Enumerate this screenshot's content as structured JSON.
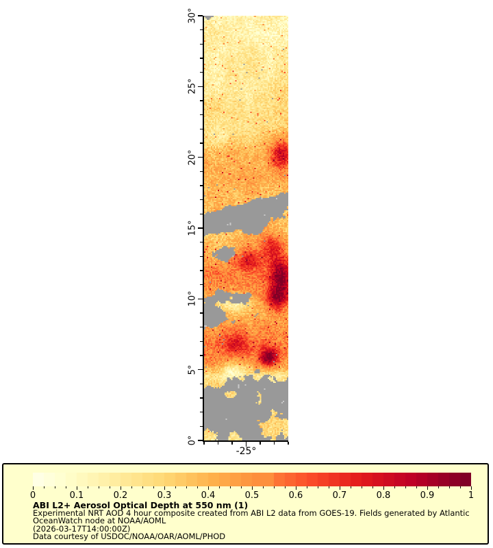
{
  "figure": {
    "y_axis": {
      "tick_values": [
        0,
        5,
        10,
        15,
        20,
        25,
        30
      ],
      "tick_labels": [
        "0°",
        "5°",
        "10°",
        "15°",
        "20°",
        "25°",
        "30°"
      ],
      "minor_step_deg": 1
    },
    "x_axis": {
      "tick_values": [
        -25
      ],
      "tick_labels": [
        "-25°"
      ],
      "minor_step_deg": 1
    },
    "colors": {
      "page_bg": "#ffffff",
      "panel_bg": "#ffffcc",
      "axis": "#000000",
      "nodata_gray": "#999999",
      "nodata_light_gray": "#c9c9c9"
    }
  },
  "legend_panel": {
    "colorbar_tick_labels": [
      "0",
      "0.1",
      "0.2",
      "0.3",
      "0.4",
      "0.5",
      "0.6",
      "0.7",
      "0.8",
      "0.9",
      "1"
    ],
    "caption_title": "ABI L2+ Aerosol Optical Depth at 550 nm (1)",
    "caption_lines": [
      "Experimental NRT AOD 4 hour composite created from ABI L2 data from GOES-19. Fields generated by Atlantic",
      "OceanWatch node at NOAA/AOML",
      "(2026-03-17T14:00:00Z)",
      "Data courtesy of USDOC/NOAA/OAR/AOML/PHOD"
    ]
  },
  "chart_data": {
    "type": "heatmap",
    "title": "ABI L2+ Aerosol Optical Depth at 550 nm (1)",
    "variable": "Aerosol Optical Depth at 550 nm",
    "x_range_lon_deg": [
      -28,
      -22
    ],
    "y_range_lat_deg": [
      0,
      30
    ],
    "value_range": [
      0,
      1
    ],
    "colorbar_tick_step": 0.1,
    "colorbar_minor_step": 0.025,
    "level_step": 0.025,
    "colormap_positions": [
      0,
      0.09,
      0.2,
      0.31,
      0.42,
      0.53,
      0.64,
      0.76,
      0.88,
      1
    ],
    "colormap_stops": [
      "#ffffee",
      "#ffffcc",
      "#ffeda0",
      "#fed976",
      "#feb24c",
      "#fd8d3c",
      "#fc4e2a",
      "#e31a1c",
      "#bd0026",
      "#800026"
    ],
    "nodata_color": "#999999",
    "aod_profile_by_lat_band": [
      0.3,
      0.35,
      0.3,
      0.3,
      0.25,
      0.5,
      0.55,
      0.5,
      0.45,
      0.35,
      0.5,
      0.55,
      0.5,
      0.45,
      0.4,
      0.38,
      0.38,
      0.4,
      0.45,
      0.45,
      0.4,
      0.33,
      0.3,
      0.28,
      0.26,
      0.24,
      0.22,
      0.2,
      0.19,
      0.19
    ],
    "cloud_profile_by_lat_band": [
      1.0,
      0.95,
      1.05,
      1.0,
      0.7,
      0.3,
      0.15,
      0.25,
      0.45,
      0.45,
      0.3,
      0.2,
      0.3,
      0.35,
      0.3,
      0.55,
      0.45,
      0.15,
      0.05,
      0.03,
      0.02,
      0.02,
      0.02,
      0.02,
      0.02,
      0.02,
      0.02,
      0.01,
      0.01,
      0.06
    ],
    "plumes": [
      {
        "lon": -22.5,
        "lat": 20.2,
        "rlon": 0.8,
        "rlat": 1.1,
        "amp": 0.4
      },
      {
        "lon": -22.6,
        "lat": 11.6,
        "rlon": 0.7,
        "rlat": 1.6,
        "amp": 0.45
      },
      {
        "lon": -22.9,
        "lat": 9.9,
        "rlon": 0.9,
        "rlat": 0.8,
        "amp": 0.4
      },
      {
        "lon": -23.4,
        "lat": 5.9,
        "rlon": 0.7,
        "rlat": 0.7,
        "amp": 0.5
      },
      {
        "lon": -24.8,
        "lat": 12.6,
        "rlon": 0.9,
        "rlat": 0.7,
        "amp": 0.3
      },
      {
        "lon": -23.2,
        "lat": 13.8,
        "rlon": 0.8,
        "rlat": 0.8,
        "amp": 0.25
      },
      {
        "lon": -25.6,
        "lat": 6.9,
        "rlon": 1.0,
        "rlat": 0.8,
        "amp": 0.25
      },
      {
        "lon": -25.8,
        "lat": 9.8,
        "rlon": 1.0,
        "rlat": 0.8,
        "amp": -0.22
      },
      {
        "lon": -25.9,
        "lat": 4.9,
        "rlon": 0.9,
        "rlat": 0.6,
        "amp": -0.18
      },
      {
        "lon": -26.5,
        "lat": 21.5,
        "rlon": 1.2,
        "rlat": 1.2,
        "amp": -0.1
      }
    ],
    "cloud_features": [
      {
        "type": "blob",
        "lon": -27.7,
        "lat": 30.0,
        "rlon": 0.8,
        "rlat": 0.5,
        "amp": 0.9
      },
      {
        "type": "band",
        "lat_west": 15.0,
        "slope": 0.35,
        "half_width": 0.7,
        "amp": 0.9
      },
      {
        "type": "blob",
        "lon": -27.4,
        "lat": 8.7,
        "rlon": 1.0,
        "rlat": 0.8,
        "amp": 0.9
      },
      {
        "type": "blob",
        "lon": -26.6,
        "lat": 13.2,
        "rlon": 0.8,
        "rlat": 0.6,
        "amp": 0.7
      },
      {
        "type": "blob",
        "lon": -26.9,
        "lat": 10.2,
        "rlon": 0.6,
        "rlat": 0.5,
        "amp": 0.7
      },
      {
        "type": "blob",
        "lon": -25.3,
        "lat": 10.1,
        "rlon": 0.7,
        "rlat": 0.5,
        "amp": 0.6
      },
      {
        "type": "blob",
        "lon": -24.3,
        "lat": 15.0,
        "rlon": 0.9,
        "rlat": 0.7,
        "amp": 0.5
      }
    ],
    "clear_patches": [
      {
        "lon": -27.2,
        "lat": 4.6,
        "rlon": 0.9,
        "rlat": 0.7,
        "amp": 0.85
      },
      {
        "lon": -22.9,
        "lat": 1.0,
        "rlon": 1.0,
        "rlat": 0.9,
        "amp": 0.8
      },
      {
        "lon": -27.7,
        "lat": 0.3,
        "rlon": 0.6,
        "rlat": 0.5,
        "amp": 0.8
      },
      {
        "lon": -25.8,
        "lat": 0.2,
        "rlon": 0.5,
        "rlat": 0.4,
        "amp": 0.7
      },
      {
        "lon": -24.0,
        "lat": 2.6,
        "rlon": 0.5,
        "rlat": 0.5,
        "amp": 0.5
      },
      {
        "lon": -26.3,
        "lat": 3.2,
        "rlon": 0.5,
        "rlat": 0.4,
        "amp": 0.5
      }
    ]
  }
}
